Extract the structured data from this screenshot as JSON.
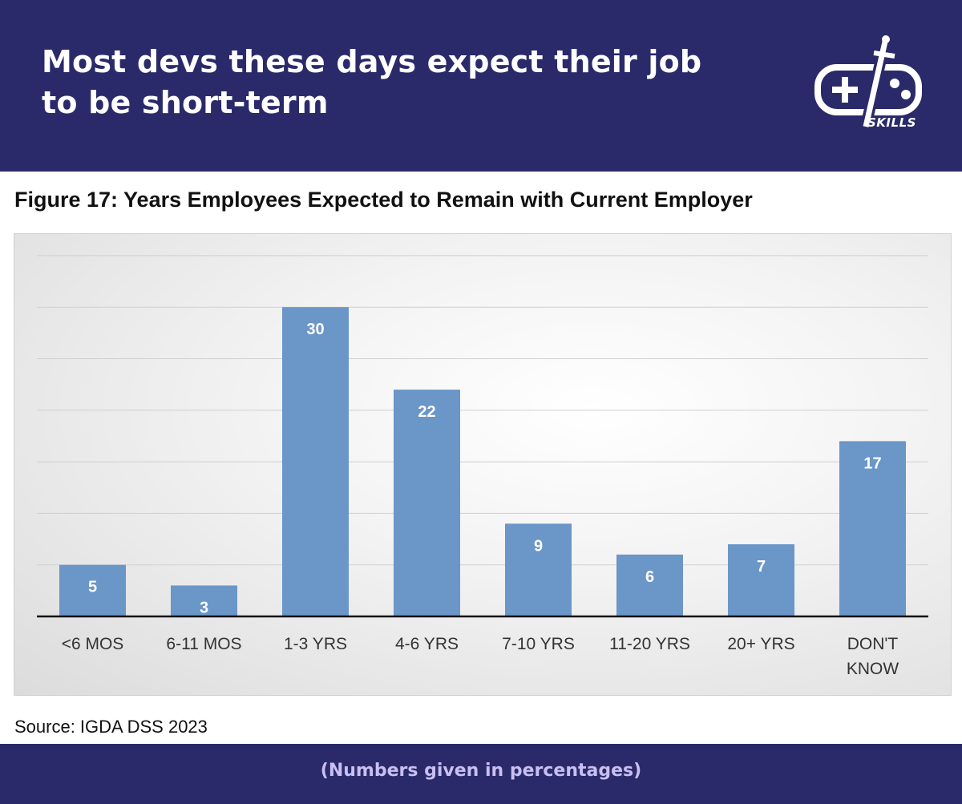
{
  "header": {
    "headline_line1": "Most devs these days expect their job",
    "headline_line2": "to be short-term",
    "logo_text": "SKILLS"
  },
  "chart_data": {
    "type": "bar",
    "title": "Figure 17: Years Employees Expected to Remain with Current Employer",
    "categories": [
      "<6 MOS",
      "6-11 MOS",
      "1-3 YRS",
      "4-6 YRS",
      "7-10 YRS",
      "11-20 YRS",
      "20+ YRS",
      "DON'T KNOW"
    ],
    "values": [
      5,
      3,
      30,
      22,
      9,
      6,
      7,
      17
    ],
    "ylim": [
      0,
      35
    ],
    "grid": true,
    "data_labels": true,
    "bar_color": "#6a96c8"
  },
  "source": "Source: IGDA DSS 2023",
  "footer": {
    "note": "(Numbers given in percentages)"
  },
  "colors": {
    "brand": "#2a2a6a",
    "footnote": "#c9bff2"
  }
}
